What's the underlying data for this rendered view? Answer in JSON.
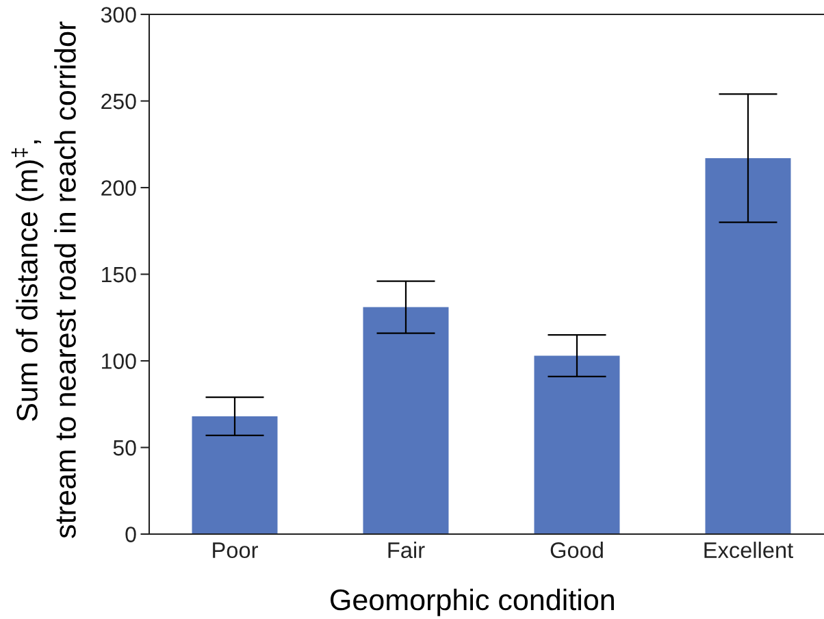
{
  "chart_data": {
    "type": "bar",
    "xlabel": "Geomorphic condition",
    "ylabel": "Sum of distance (m)$^{‡}$,\nstream to nearest road in reach corridor",
    "categories": [
      "Poor",
      "Fair",
      "Good",
      "Excellent"
    ],
    "values": [
      68,
      131,
      103,
      217
    ],
    "errors": [
      11,
      15,
      12,
      37
    ],
    "color": "#5576bc",
    "ylim": [
      0,
      300
    ],
    "yticks": [
      0,
      50,
      100,
      150,
      200,
      250,
      300
    ]
  }
}
